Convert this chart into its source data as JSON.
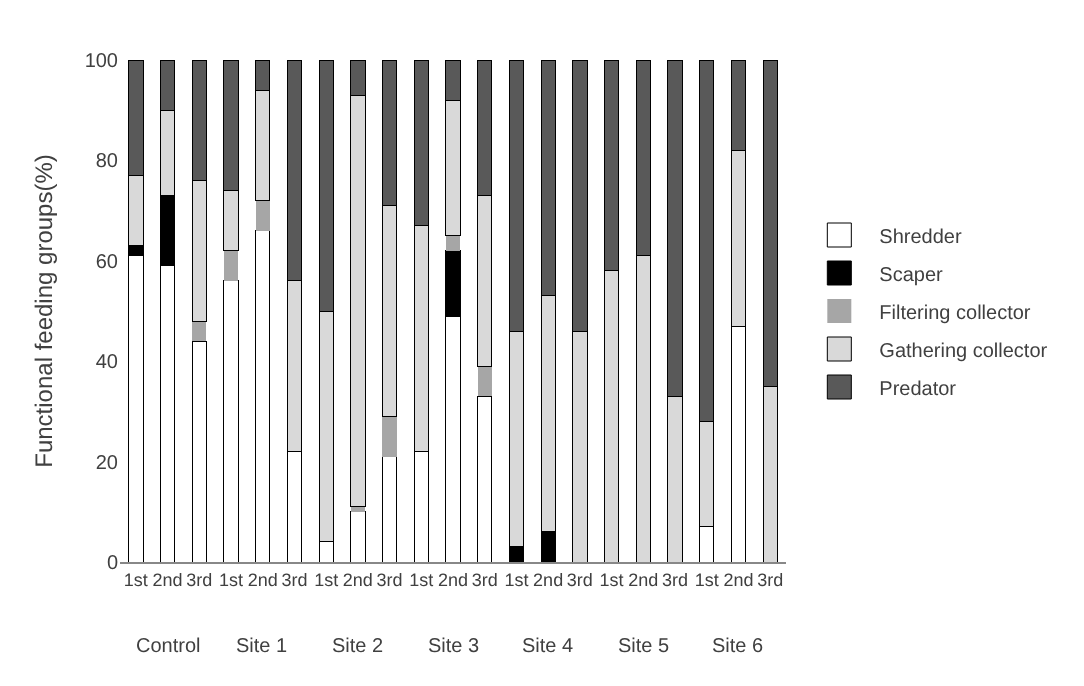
{
  "chart_data": {
    "type": "bar",
    "stacked": true,
    "ylabel": "Functional feeding groups(%)",
    "categories": [
      "1st",
      "2nd",
      "3rd",
      "1st",
      "2nd",
      "3rd",
      "1st",
      "2nd",
      "3rd",
      "1st",
      "2nd",
      "3rd",
      "1st",
      "2nd",
      "3rd",
      "1st",
      "2nd",
      "3rd",
      "1st",
      "2nd",
      "3rd"
    ],
    "annotations": [
      "Control",
      "Site 1",
      "Site 2",
      "Site 3",
      "Site 4",
      "Site 5",
      "Site 6"
    ],
    "series": [
      {
        "name": "Shredder",
        "color": "#ffffff",
        "values": [
          61,
          59,
          44,
          56,
          66,
          22,
          4,
          10,
          21,
          22,
          49,
          33,
          0,
          0,
          0,
          0,
          0,
          0,
          7,
          47,
          0
        ]
      },
      {
        "name": "Scaper",
        "color": "#000000",
        "values": [
          2,
          14,
          0,
          0,
          0,
          0,
          0,
          0,
          0,
          0,
          13,
          0,
          3,
          6,
          0,
          0,
          0,
          0,
          0,
          0,
          0
        ]
      },
      {
        "name": "Filtering collector",
        "color": "#a6a6a6",
        "values": [
          0,
          0,
          4,
          6,
          6,
          0,
          0,
          1,
          8,
          0,
          3,
          6,
          0,
          0,
          0,
          0,
          0,
          0,
          0,
          0,
          0
        ]
      },
      {
        "name": "Gathering collector",
        "color": "#d9d9d9",
        "values": [
          14,
          17,
          28,
          12,
          22,
          34,
          46,
          82,
          42,
          45,
          27,
          34,
          43,
          47,
          46,
          58,
          61,
          33,
          21,
          35,
          35
        ]
      },
      {
        "name": "Predator",
        "color": "#595959",
        "values": [
          23,
          10,
          24,
          26,
          6,
          44,
          50,
          7,
          29,
          33,
          8,
          27,
          54,
          47,
          54,
          42,
          39,
          67,
          72,
          18,
          65
        ]
      }
    ],
    "ylim": [
      0,
      100
    ],
    "yticks": [
      0,
      20,
      40,
      60,
      80,
      100
    ],
    "grid": false,
    "legend": "right"
  }
}
